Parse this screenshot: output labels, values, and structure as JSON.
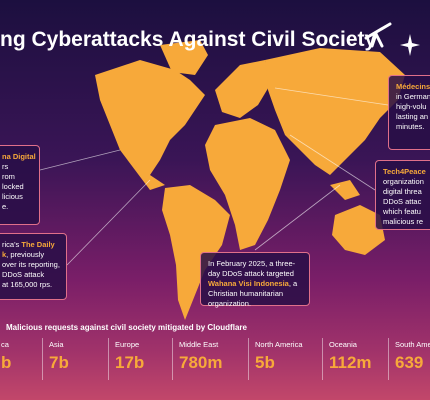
{
  "header": {
    "title": "ng Cyberattacks Against Civil Society"
  },
  "callouts": [
    {
      "heading": "na Digital",
      "lines": [
        "rs",
        "rom",
        "locked",
        "licious",
        "e."
      ]
    },
    {
      "heading": "Médecins",
      "lines": [
        "in German",
        "high-volu",
        "lasting an",
        "minutes."
      ]
    },
    {
      "heading": "Tech4Peace",
      "lines": [
        "organization",
        "digital threa",
        "DDoS attac",
        "which featu",
        "malicious re"
      ]
    },
    {
      "segments": [
        "rica's ",
        "The Daily",
        "k",
        ", previously",
        "over its reporting,",
        "DDoS attack",
        "at 165,000 rps."
      ]
    },
    {
      "segments": [
        "In February 2025, a three-day DDoS attack targeted ",
        "Wahana Visi Indonesia",
        ", a Christian humanitarian organization."
      ]
    }
  ],
  "stats": {
    "title": "Malicious requests against civil society mitigated by Cloudflare",
    "items": [
      {
        "region": "ca",
        "value": "b"
      },
      {
        "region": "Asia",
        "value": "7b"
      },
      {
        "region": "Europe",
        "value": "17b"
      },
      {
        "region": "Middle East",
        "value": "780m"
      },
      {
        "region": "North America",
        "value": "5b"
      },
      {
        "region": "Oceania",
        "value": "112m"
      },
      {
        "region": "South America",
        "value": "639"
      }
    ]
  }
}
